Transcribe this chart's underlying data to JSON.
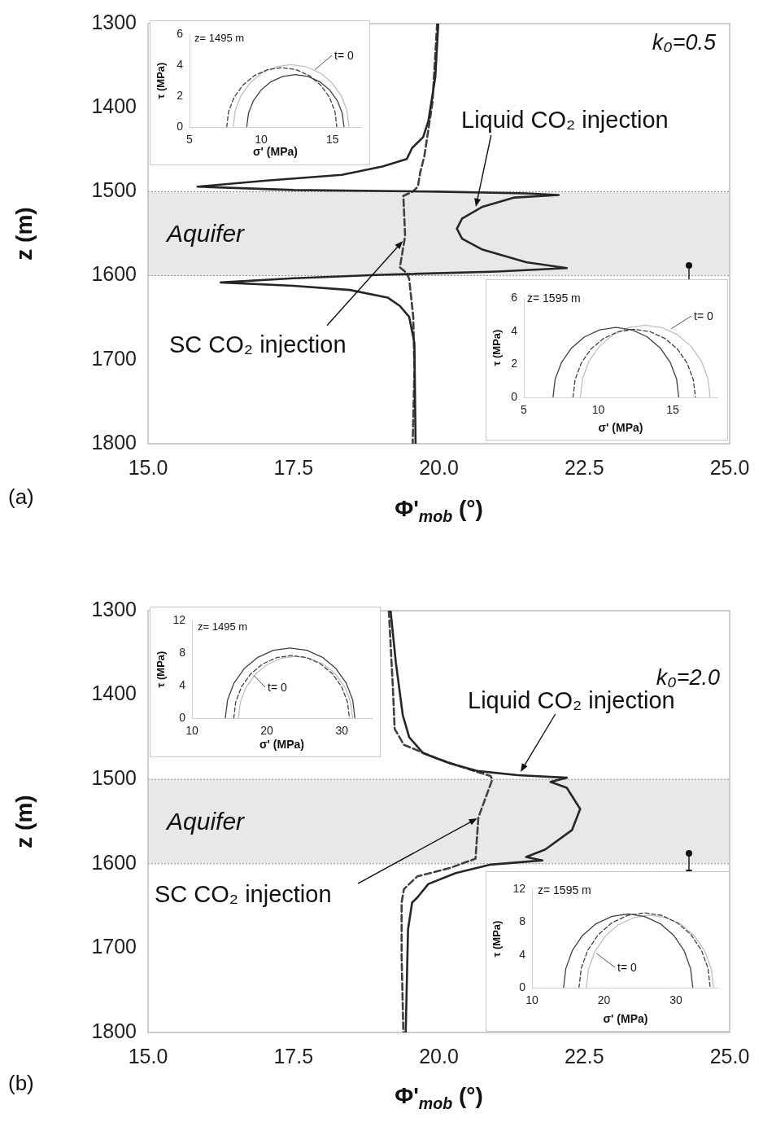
{
  "chart_data": [
    {
      "type": "line",
      "xlabel": "Φ'$_{mob}$ (°)",
      "ylabel": "z (m)",
      "xlim": [
        15,
        25
      ],
      "xticks": [
        {
          "value": 15,
          "label": "15.0"
        },
        {
          "value": 17.5,
          "label": "17.5"
        },
        {
          "value": 20,
          "label": "20.0"
        },
        {
          "value": 22.5,
          "label": "22.5"
        },
        {
          "value": 25,
          "label": "25.0"
        }
      ],
      "ylim": [
        1800,
        1300
      ],
      "yticks": [
        1300,
        1400,
        1500,
        1600,
        1700,
        1800
      ],
      "bands": [
        {
          "axis": "y",
          "from": 1500,
          "to": 1600,
          "label": "Aquifer",
          "color": "#e8e8e8"
        }
      ],
      "annotations": [
        "k₀=0.5",
        {
          "text": "Liquid CO₂ injection",
          "x": 20.64,
          "y": 1518
        },
        {
          "text": "SC CO₂ injection",
          "x": 19.38,
          "y": 1559
        },
        "(a)"
      ],
      "series": [
        {
          "color": "#262626",
          "line_style": "solid",
          "x": [
            19.99,
            19.94,
            19.82,
            19.73,
            19.54,
            19.45,
            19.03,
            18.33,
            17.0,
            15.85,
            17.5,
            20.0,
            21.5,
            22.06,
            21.3,
            20.75,
            20.4,
            20.31,
            20.4,
            20.75,
            21.5,
            22.2,
            21.0,
            19.0,
            17.5,
            16.25,
            17.5,
            18.47,
            19.12,
            19.33,
            19.49,
            19.58,
            19.6
          ],
          "values": [
            1300,
            1363,
            1416,
            1435,
            1448,
            1461,
            1470,
            1480,
            1487,
            1494,
            1498,
            1500,
            1502,
            1504,
            1507,
            1518,
            1532,
            1544,
            1556,
            1569,
            1584,
            1591,
            1595,
            1599,
            1603,
            1608,
            1612,
            1617,
            1626,
            1636,
            1649,
            1680,
            1800
          ]
        },
        {
          "color": "#404040",
          "line_style": "dashed",
          "x": [
            19.97,
            19.89,
            19.82,
            19.75,
            19.68,
            19.64,
            19.55,
            19.39,
            19.42,
            19.33,
            19.45,
            19.49,
            19.56,
            19.58,
            19.55
          ],
          "values": [
            1300,
            1394,
            1426,
            1458,
            1477,
            1494,
            1500,
            1505,
            1553,
            1590,
            1597,
            1604,
            1649,
            1712,
            1800
          ]
        }
      ]
    },
    {
      "type": "line",
      "xlabel": "σ' (MPa)",
      "ylabel": "τ (MPa)",
      "xlim": [
        5,
        17
      ],
      "xticks": [
        5,
        10,
        15
      ],
      "ylim": [
        0,
        6
      ],
      "yticks": [
        0,
        2,
        4,
        6
      ],
      "annotations": [
        "z= 1495 m",
        {
          "text": "t= 0",
          "x": 13.77,
          "y": 3.72
        }
      ],
      "series": [
        {
          "color": "#404040",
          "line_style": "solid",
          "x": [
            9.0,
            9.12,
            9.46,
            10.0,
            10.7,
            11.52,
            12.4,
            13.28,
            14.1,
            14.8,
            15.34,
            15.68,
            15.8
          ],
          "values": [
            0,
            0.88,
            1.7,
            2.4,
            2.94,
            3.28,
            3.4,
            3.28,
            2.94,
            2.4,
            1.7,
            0.88,
            0
          ]
        },
        {
          "color": "#404040",
          "line_style": "dashed",
          "x": [
            7.6,
            7.73,
            8.12,
            8.73,
            9.53,
            10.45,
            11.45,
            12.45,
            13.38,
            14.17,
            14.78,
            15.17,
            15.3
          ],
          "values": [
            0,
            1.0,
            1.93,
            2.72,
            3.33,
            3.72,
            3.85,
            3.72,
            3.33,
            2.72,
            1.93,
            1.0,
            0
          ]
        },
        {
          "color": "#bfbfbf",
          "line_style": "solid",
          "x": [
            8.05,
            8.19,
            8.59,
            9.24,
            10.08,
            11.05,
            12.1,
            13.15,
            14.13,
            14.96,
            15.61,
            16.01,
            16.15
          ],
          "values": [
            0,
            1.05,
            2.03,
            2.86,
            3.51,
            3.91,
            4.05,
            3.91,
            3.51,
            2.86,
            2.03,
            1.05,
            0
          ]
        }
      ]
    },
    {
      "type": "line",
      "xlabel": "σ' (MPa)",
      "ylabel": "τ (MPa)",
      "xlim": [
        5,
        18
      ],
      "xticks": [
        5,
        10,
        15
      ],
      "ylim": [
        0,
        6
      ],
      "yticks": [
        0,
        2,
        4,
        6
      ],
      "annotations": [
        "z= 1595 m",
        {
          "text": "t= 0",
          "x": 14.91,
          "y": 4.15
        }
      ],
      "series": [
        {
          "color": "#404040",
          "line_style": "solid",
          "x": [
            6.96,
            7.1,
            7.53,
            8.2,
            9.07,
            10.09,
            11.18,
            12.27,
            13.29,
            14.16,
            14.83,
            15.26,
            15.4
          ],
          "values": [
            0,
            1.09,
            2.11,
            2.98,
            3.65,
            4.08,
            4.22,
            4.08,
            3.65,
            2.98,
            2.11,
            1.09,
            0
          ]
        },
        {
          "color": "#404040",
          "line_style": "dashed",
          "x": [
            8.3,
            8.44,
            8.85,
            9.5,
            10.36,
            11.35,
            12.41,
            13.47,
            14.47,
            15.32,
            15.97,
            16.38,
            16.52
          ],
          "values": [
            0,
            1.06,
            2.06,
            2.91,
            3.56,
            3.97,
            4.11,
            3.97,
            3.56,
            2.91,
            2.06,
            1.06,
            0
          ]
        },
        {
          "color": "#bfbfbf",
          "line_style": "solid",
          "x": [
            8.79,
            8.94,
            9.37,
            10.07,
            10.97,
            12.02,
            13.15,
            14.28,
            15.33,
            16.23,
            16.93,
            17.36,
            17.51
          ],
          "values": [
            0,
            1.13,
            2.18,
            3.08,
            3.78,
            4.21,
            4.36,
            4.21,
            3.78,
            3.08,
            2.18,
            1.13,
            0
          ]
        }
      ]
    },
    {
      "type": "line",
      "xlabel": "Φ'$_{mob}$ (°)",
      "ylabel": "z (m)",
      "xlim": [
        15,
        25
      ],
      "xticks": [
        {
          "value": 15,
          "label": "15.0"
        },
        {
          "value": 17.5,
          "label": "17.5"
        },
        {
          "value": 20,
          "label": "20.0"
        },
        {
          "value": 22.5,
          "label": "22.5"
        },
        {
          "value": 25,
          "label": "25.0"
        }
      ],
      "ylim": [
        1800,
        1300
      ],
      "yticks": [
        1300,
        1400,
        1500,
        1600,
        1700,
        1800
      ],
      "bands": [
        {
          "axis": "y",
          "from": 1500,
          "to": 1600,
          "label": "Aquifer",
          "color": "#e8e8e8"
        }
      ],
      "annotations": [
        "k₀=2.0",
        {
          "text": "Liquid CO₂ injection",
          "x": 21.41,
          "y": 1491
        },
        {
          "text": "SC CO₂ injection",
          "x": 20.66,
          "y": 1546
        },
        "(b)"
      ],
      "series": [
        {
          "color": "#262626",
          "line_style": "solid",
          "x": [
            19.17,
            19.26,
            19.38,
            19.49,
            19.73,
            20.19,
            20.66,
            21.36,
            22.2,
            21.92,
            22.2,
            22.43,
            22.29,
            21.83,
            21.5,
            21.78,
            20.89,
            20.29,
            19.82,
            19.63,
            19.54,
            19.47,
            19.43
          ],
          "values": [
            1300,
            1361,
            1424,
            1450,
            1469,
            1481,
            1490,
            1495,
            1498,
            1503,
            1510,
            1535,
            1560,
            1583,
            1592,
            1596,
            1601,
            1611,
            1624,
            1640,
            1646,
            1678,
            1800
          ]
        },
        {
          "color": "#404040",
          "line_style": "dashed",
          "x": [
            19.14,
            19.21,
            19.24,
            19.4,
            19.96,
            20.47,
            20.89,
            20.92,
            20.68,
            20.63,
            20.19,
            19.63,
            19.4,
            19.36,
            19.36,
            19.39
          ],
          "values": [
            1300,
            1392,
            1440,
            1459,
            1475,
            1487,
            1496,
            1500,
            1545,
            1594,
            1605,
            1615,
            1630,
            1646,
            1710,
            1800
          ]
        }
      ]
    },
    {
      "type": "line",
      "xlabel": "σ' (MPa)",
      "ylabel": "τ (MPa)",
      "xlim": [
        10,
        34
      ],
      "xticks": [
        10,
        20,
        30
      ],
      "ylim": [
        0,
        12
      ],
      "yticks": [
        0,
        4,
        8,
        12
      ],
      "annotations": [
        "z= 1495 m",
        {
          "text": "t= 0",
          "x": 18.26,
          "y": 5.27
        }
      ],
      "series": [
        {
          "color": "#404040",
          "line_style": "solid",
          "x": [
            14.45,
            14.75,
            15.61,
            16.98,
            18.78,
            20.86,
            23.1,
            25.34,
            27.43,
            29.22,
            30.59,
            31.46,
            31.75
          ],
          "values": [
            0,
            2.24,
            4.33,
            6.12,
            7.49,
            8.36,
            8.65,
            8.36,
            7.49,
            6.12,
            4.33,
            2.24,
            0
          ]
        },
        {
          "color": "#404040",
          "line_style": "dashed",
          "x": [
            15.58,
            15.84,
            16.61,
            17.84,
            19.44,
            21.3,
            23.3,
            25.3,
            27.16,
            28.76,
            29.99,
            30.76,
            31.02
          ],
          "values": [
            0,
            2.0,
            3.86,
            5.46,
            6.69,
            7.46,
            7.72,
            7.46,
            6.69,
            5.46,
            3.86,
            2.0,
            0
          ]
        },
        {
          "color": "#bfbfbf",
          "line_style": "solid",
          "x": [
            16.2,
            16.46,
            17.22,
            18.43,
            20.01,
            21.85,
            23.82,
            25.79,
            27.63,
            29.21,
            30.42,
            31.18,
            31.44
          ],
          "values": [
            0,
            1.97,
            3.81,
            5.39,
            6.6,
            7.36,
            7.62,
            7.36,
            6.6,
            5.39,
            3.81,
            1.97,
            0
          ]
        }
      ]
    },
    {
      "type": "line",
      "xlabel": "σ' (MPa)",
      "ylabel": "τ (MPa)",
      "xlim": [
        10,
        36
      ],
      "xticks": [
        10,
        20,
        30
      ],
      "ylim": [
        0,
        12
      ],
      "yticks": [
        0,
        4,
        8,
        12
      ],
      "annotations": [
        "z= 1595 m",
        {
          "text": "t= 0",
          "x": 18.94,
          "y": 4.19
        }
      ],
      "series": [
        {
          "color": "#404040",
          "line_style": "solid",
          "x": [
            14.39,
            14.7,
            15.59,
            17.02,
            18.88,
            21.05,
            23.37,
            25.69,
            27.86,
            29.72,
            31.15,
            32.04,
            32.35
          ],
          "values": [
            0,
            2.32,
            4.49,
            6.35,
            7.78,
            8.67,
            8.98,
            8.67,
            7.78,
            6.35,
            4.49,
            2.32,
            0
          ]
        },
        {
          "color": "#404040",
          "line_style": "dashed",
          "x": [
            16.53,
            16.84,
            17.75,
            19.2,
            21.09,
            23.29,
            25.65,
            28.01,
            30.21,
            32.1,
            33.55,
            34.46,
            34.77
          ],
          "values": [
            0,
            2.36,
            4.56,
            6.45,
            7.9,
            8.81,
            9.12,
            8.81,
            7.9,
            6.45,
            4.56,
            2.36,
            0
          ]
        },
        {
          "color": "#bfbfbf",
          "line_style": "solid",
          "x": [
            17.56,
            17.86,
            18.74,
            20.15,
            21.98,
            24.11,
            26.39,
            28.67,
            30.81,
            32.63,
            34.04,
            34.92,
            35.22
          ],
          "values": [
            0,
            2.29,
            4.42,
            6.24,
            7.65,
            8.53,
            8.83,
            8.53,
            7.65,
            6.24,
            4.42,
            2.29,
            0
          ]
        }
      ]
    }
  ]
}
